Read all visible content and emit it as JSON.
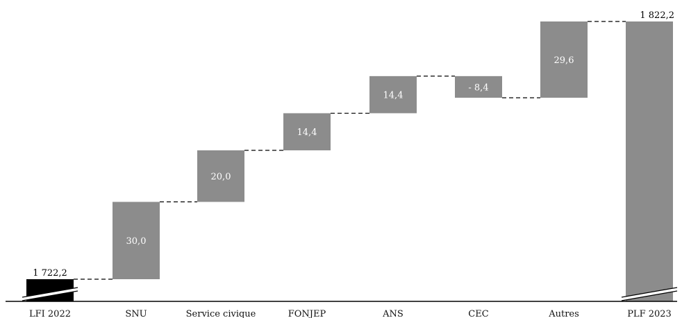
{
  "chart_data": {
    "type": "bar",
    "subtype": "waterfall",
    "categories": [
      "LFI 2022",
      "SNU",
      "Service civique",
      "FONJEP",
      "ANS",
      "CEC",
      "Autres",
      "PLF 2023"
    ],
    "values": [
      1722.2,
      30.0,
      20.0,
      14.4,
      14.4,
      -8.4,
      29.6,
      1822.2
    ],
    "kinds": [
      "total",
      "delta",
      "delta",
      "delta",
      "delta",
      "delta",
      "delta",
      "total"
    ],
    "data_labels": [
      "1 722,2",
      "30,0",
      "20,0",
      "14,4",
      "14,4",
      "- 8,4",
      "29,6",
      "1 822,2"
    ],
    "axis_break": true,
    "grid": false,
    "legend": "none",
    "colors": {
      "start_total": "#000000",
      "bars": "#8c8c8c",
      "inner_label": "#ffffff",
      "outer_label": "#000000",
      "connector": "#000000",
      "axis": "#000000"
    }
  }
}
